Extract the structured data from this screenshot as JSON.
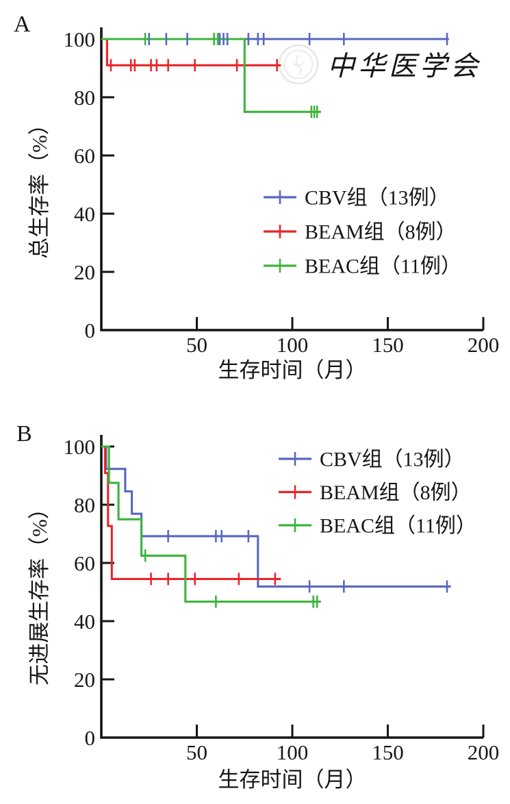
{
  "watermark": {
    "text": "中华医学会",
    "color": "#e8e6e2",
    "seal_icon": "cma-seal-icon"
  },
  "colors": {
    "cbv": "#5768be",
    "beam": "#e8252a",
    "beac": "#3cb43c",
    "axis": "#151515"
  },
  "chart_data": [
    {
      "type": "line",
      "subtype": "kaplan-meier-step",
      "panel_label": "A",
      "title": "",
      "xlabel": "生存时间（月）",
      "ylabel": "总生存率（%）",
      "xlim": [
        0,
        200
      ],
      "ylim": [
        0,
        100
      ],
      "xticks": [
        50,
        100,
        150,
        200
      ],
      "yticks": [
        0,
        20,
        40,
        60,
        80,
        100
      ],
      "grid": false,
      "legend_position": "center-right",
      "series": [
        {
          "id": "cbv",
          "name": "CBV组（13例）",
          "color": "#5768be",
          "steps": [
            [
              0,
              100
            ],
            [
              182,
              100
            ]
          ],
          "censor_marks": [
            [
              25,
              100
            ],
            [
              34,
              100
            ],
            [
              45,
              100
            ],
            [
              62,
              100
            ],
            [
              64,
              100
            ],
            [
              66,
              100
            ],
            [
              77,
              100
            ],
            [
              82,
              100
            ],
            [
              85,
              100
            ],
            [
              109,
              100
            ],
            [
              127,
              100
            ],
            [
              181,
              100
            ]
          ]
        },
        {
          "id": "beam",
          "name": "BEAM组（8例）",
          "color": "#e8252a",
          "steps": [
            [
              0,
              100
            ],
            [
              3,
              100
            ],
            [
              3,
              91
            ],
            [
              94,
              91
            ]
          ],
          "censor_marks": [
            [
              5,
              91
            ],
            [
              15.5,
              91
            ],
            [
              17.5,
              91
            ],
            [
              26,
              91
            ],
            [
              29,
              91
            ],
            [
              35,
              91
            ],
            [
              49,
              91
            ],
            [
              71,
              91
            ],
            [
              92,
              91
            ]
          ]
        },
        {
          "id": "beac",
          "name": "BEAC组（11例）",
          "color": "#3cb43c",
          "steps": [
            [
              0,
              100
            ],
            [
              75,
              100
            ],
            [
              75,
              75
            ],
            [
              115,
              75
            ]
          ],
          "censor_marks": [
            [
              23,
              100
            ],
            [
              59,
              100
            ],
            [
              61,
              100
            ],
            [
              110,
              75
            ],
            [
              111.5,
              75
            ],
            [
              113,
              75
            ]
          ]
        }
      ]
    },
    {
      "type": "line",
      "subtype": "kaplan-meier-step",
      "panel_label": "B",
      "title": "",
      "xlabel": "生存时间（月）",
      "ylabel": "无进展生存率（%）",
      "xlim": [
        0,
        200
      ],
      "ylim": [
        0,
        100
      ],
      "xticks": [
        50,
        100,
        150,
        200
      ],
      "yticks": [
        0,
        20,
        40,
        60,
        80,
        100
      ],
      "grid": false,
      "legend_position": "top-right",
      "series": [
        {
          "id": "cbv",
          "name": "CBV组（13例）",
          "color": "#5768be",
          "steps": [
            [
              0,
              100
            ],
            [
              2.5,
              100
            ],
            [
              2.5,
              92.3
            ],
            [
              12.5,
              92.3
            ],
            [
              12.5,
              84.6
            ],
            [
              16,
              84.6
            ],
            [
              16,
              76.9
            ],
            [
              21,
              76.9
            ],
            [
              21,
              69.2
            ],
            [
              82,
              69.2
            ],
            [
              82,
              51.9
            ],
            [
              183,
              51.9
            ]
          ],
          "censor_marks": [
            [
              35,
              69.2
            ],
            [
              60,
              69.2
            ],
            [
              63,
              69.2
            ],
            [
              77,
              69.2
            ],
            [
              109,
              51.9
            ],
            [
              127,
              51.9
            ],
            [
              181,
              51.9
            ]
          ]
        },
        {
          "id": "beam",
          "name": "BEAM组（8例）",
          "color": "#e8252a",
          "steps": [
            [
              0,
              100
            ],
            [
              2,
              100
            ],
            [
              2,
              90.9
            ],
            [
              3.5,
              90.9
            ],
            [
              3.5,
              72.7
            ],
            [
              5.5,
              72.7
            ],
            [
              5.5,
              54.5
            ],
            [
              94,
              54.5
            ]
          ],
          "censor_marks": [
            [
              26,
              54.5
            ],
            [
              35,
              54.5
            ],
            [
              49,
              54.5
            ],
            [
              72,
              54.5
            ],
            [
              91,
              54.5
            ]
          ]
        },
        {
          "id": "beac",
          "name": "BEAC组（11例）",
          "color": "#3cb43c",
          "steps": [
            [
              0,
              100
            ],
            [
              4,
              100
            ],
            [
              4,
              87.5
            ],
            [
              9,
              87.5
            ],
            [
              9,
              75
            ],
            [
              21,
              75
            ],
            [
              21,
              62.5
            ],
            [
              44,
              62.5
            ],
            [
              44,
              46.7
            ],
            [
              115,
              46.7
            ]
          ],
          "censor_marks": [
            [
              23,
              62.5
            ],
            [
              60,
              46.7
            ],
            [
              111,
              46.7
            ],
            [
              113,
              46.7
            ]
          ]
        }
      ]
    }
  ]
}
